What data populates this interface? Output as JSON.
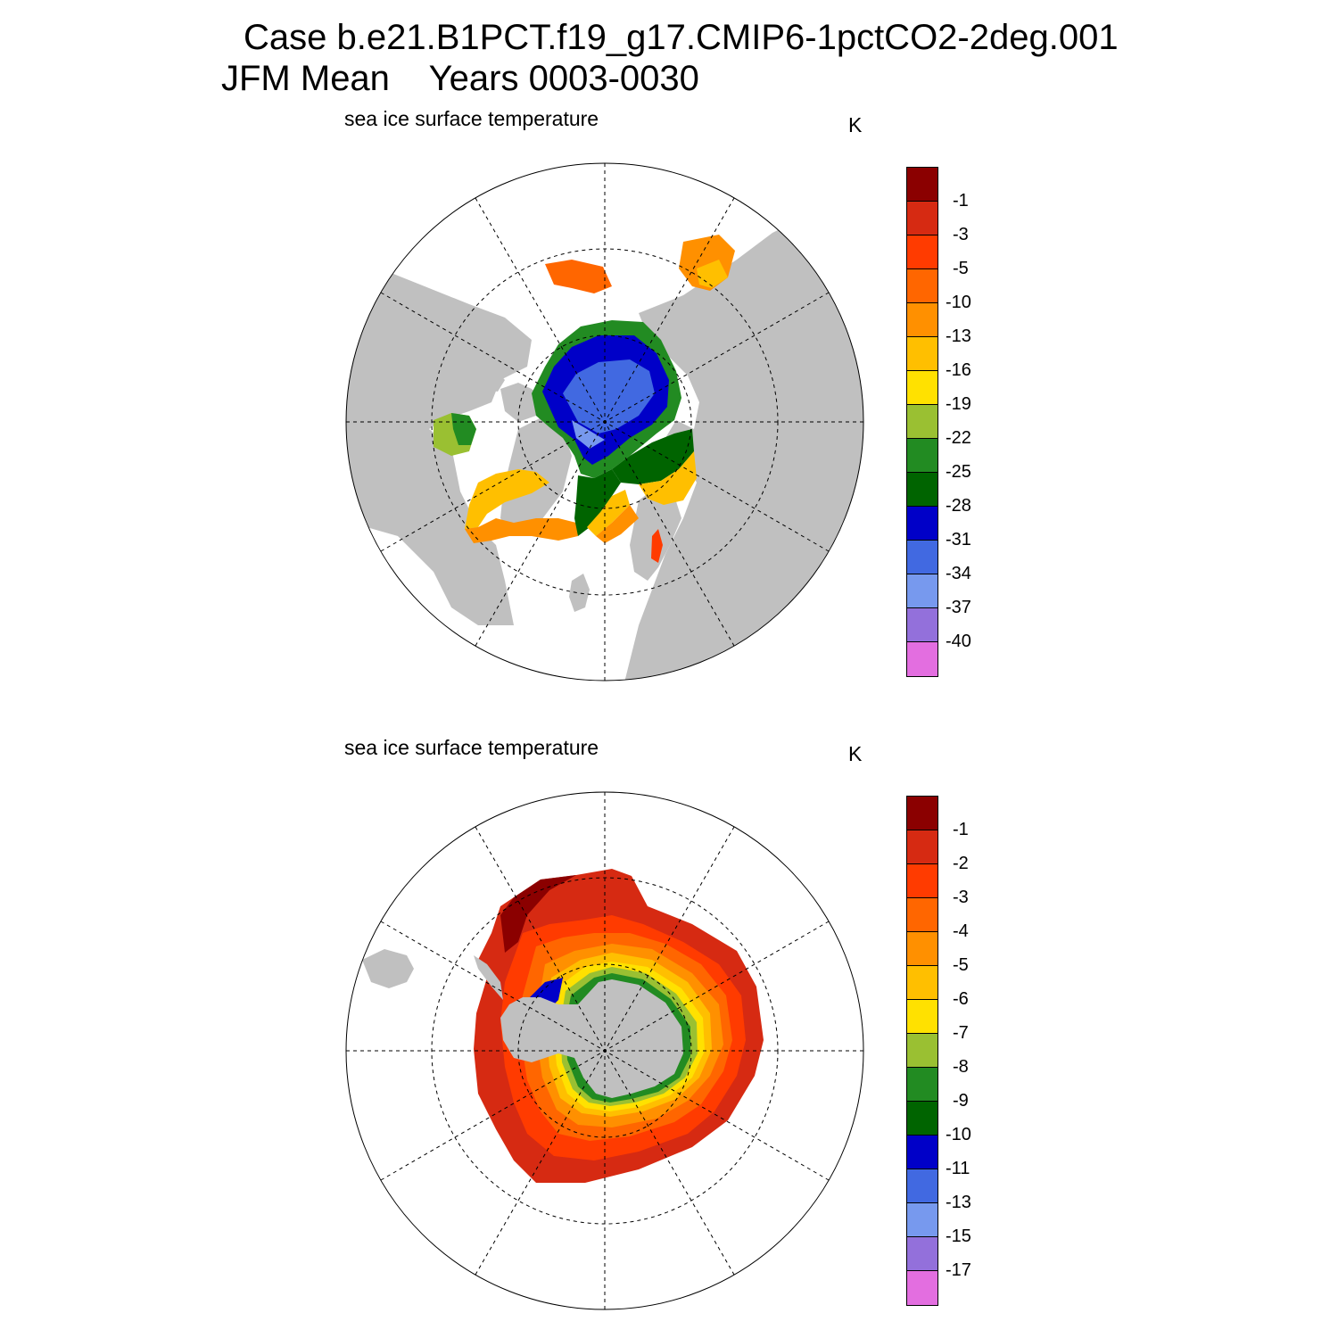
{
  "title": {
    "line1": "Case b.e21.B1PCT.f19_g17.CMIP6-1pctCO2-2deg.001",
    "line2": "JFM Mean    Years 0003-0030"
  },
  "panels": [
    {
      "id": "arctic",
      "label": "sea ice surface temperature",
      "unit": "K",
      "colorbar": {
        "colors": [
          "#8b0000",
          "#d62a12",
          "#ff3b00",
          "#ff6600",
          "#ff9000",
          "#ffbf00",
          "#ffe100",
          "#9ac032",
          "#228b22",
          "#006400",
          "#0000c8",
          "#4169e1",
          "#7799ee",
          "#9370db",
          "#e36ee0"
        ],
        "ticks": [
          "-1",
          "-3",
          "-5",
          "-10",
          "-13",
          "-16",
          "-19",
          "-22",
          "-25",
          "-28",
          "-31",
          "-34",
          "-37",
          "-40"
        ]
      }
    },
    {
      "id": "antarctic",
      "label": "sea ice surface temperature",
      "unit": "K",
      "colorbar": {
        "colors": [
          "#8b0000",
          "#d62a12",
          "#ff3b00",
          "#ff6600",
          "#ff9000",
          "#ffbf00",
          "#ffe100",
          "#9ac032",
          "#228b22",
          "#006400",
          "#0000c8",
          "#4169e1",
          "#7799ee",
          "#9370db",
          "#e36ee0"
        ],
        "ticks": [
          "-1",
          "-2",
          "-3",
          "-4",
          "-5",
          "-6",
          "-7",
          "-8",
          "-9",
          "-10",
          "-11",
          "-13",
          "-15",
          "-17"
        ]
      }
    }
  ],
  "colors": {
    "land": "#c0c0c0",
    "grid": "#000000"
  }
}
